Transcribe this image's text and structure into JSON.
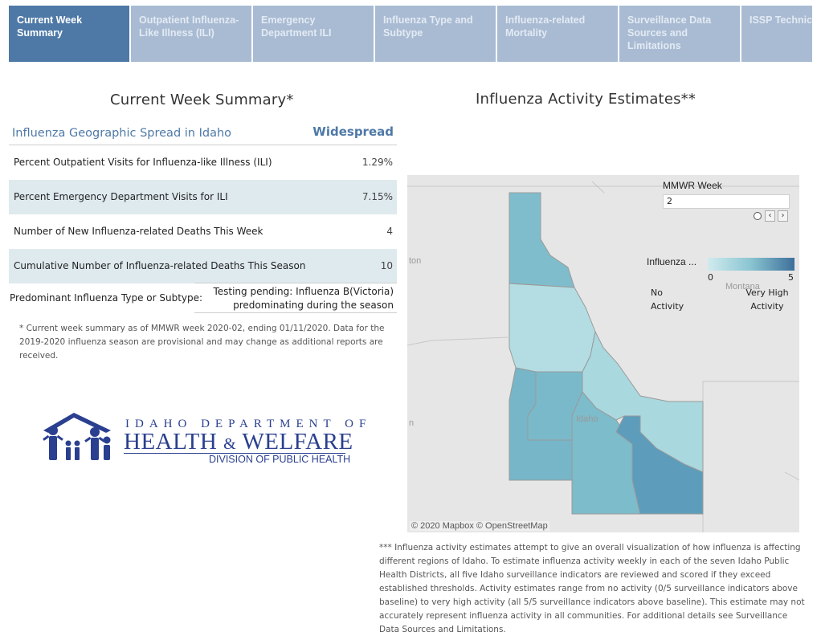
{
  "tabs": [
    {
      "label": "Current Week Summary",
      "active": true
    },
    {
      "label": "Outpatient Influenza-Like Illness (ILI)",
      "active": false
    },
    {
      "label": "Emergency Department ILI",
      "active": false
    },
    {
      "label": "Influenza Type and Subtype",
      "active": false
    },
    {
      "label": "Influenza-related Mortality",
      "active": false
    },
    {
      "label": "Surveillance Data Sources and Limitations",
      "active": false
    },
    {
      "label": "ISSP Technical",
      "active": false
    }
  ],
  "summary": {
    "title": "Current Week Summary*",
    "spread_label": "Influenza Geographic Spread in Idaho",
    "spread_value": "Widespread",
    "rows": [
      {
        "label": "Percent Outpatient Visits for Influenza-like Illness (ILI)",
        "value": "1.29%"
      },
      {
        "label": "Percent Emergency Department Visits for ILI",
        "value": "7.15%"
      },
      {
        "label": "Number of New Influenza-related Deaths This Week",
        "value": "4"
      },
      {
        "label": "Cumulative Number of Influenza-related Deaths This Season",
        "value": "10"
      }
    ],
    "predominant_label": "Predominant Influenza Type or Subtype:",
    "predominant_value_line1": "Testing pending: Influenza B(Victoria)",
    "predominant_value_line2": "predominating during the season",
    "footnote": "* Current week summary as of MMWR week 2020-02, ending 01/11/2020. Data for the 2019-2020 influenza season are provisional and may change as additional reports are received."
  },
  "logo": {
    "line1": "IDAHO DEPARTMENT OF",
    "line2a": "HEALTH",
    "line2b": "&",
    "line2c": "WELFARE",
    "line3": "DIVISION OF PUBLIC HEALTH"
  },
  "map": {
    "title": "Influenza Activity Estimates**",
    "mmwr_label": "MMWR Week",
    "mmwr_value": "2",
    "legend_title": "Influenza ...",
    "legend_min": "0",
    "legend_max": "5",
    "legend_low": [
      "No",
      "Activity"
    ],
    "legend_high": [
      "Very High",
      "Activity"
    ],
    "place_labels": {
      "west": "ton",
      "mid": "n",
      "idaho": "Idaho",
      "montana": "Montana"
    },
    "credit": "© 2020 Mapbox  © OpenStreetMap",
    "districts": [
      {
        "name": "District 1",
        "activity_color": "#7fbdcc"
      },
      {
        "name": "District 2",
        "activity_color": "#b3dde3"
      },
      {
        "name": "District 3",
        "activity_color": "#76b6c8"
      },
      {
        "name": "District 4",
        "activity_color": "#7ab9ca"
      },
      {
        "name": "District 5",
        "activity_color": "#7dbccb"
      },
      {
        "name": "District 6",
        "activity_color": "#5d9dbb"
      },
      {
        "name": "District 7",
        "activity_color": "#a9d8df"
      }
    ],
    "footnote": "*** Influenza activity estimates attempt to give an overall visualization of how influenza is affecting different regions of Idaho. To estimate influenza activity weekly in each of the seven Idaho Public Health Districts, all five Idaho surveillance indicators are reviewed and scored if they exceed established thresholds. Activity estimates range from no activity (0/5 surveillance indicators above baseline) to very high activity (all 5/5 surveillance indicators above baseline). This estimate may not accurately represent influenza activity in all communities. For additional details see Surveillance Data Sources and Limitations."
  }
}
